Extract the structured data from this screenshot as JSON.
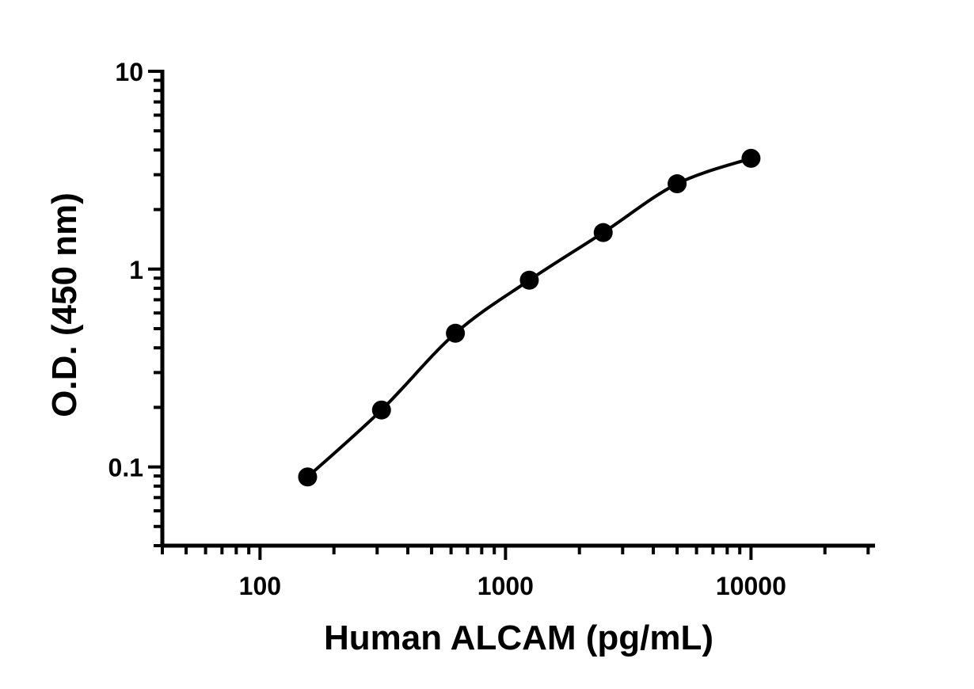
{
  "chart_data": {
    "type": "scatter",
    "title": "",
    "xlabel": "Human ALCAM (pg/mL)",
    "ylabel": "O.D. (450 nm)",
    "xscale": "log",
    "yscale": "log",
    "xlim": [
      40,
      32000
    ],
    "ylim": [
      0.04,
      10
    ],
    "xticks": [
      {
        "value": 100,
        "label": "100"
      },
      {
        "value": 1000,
        "label": "1000"
      },
      {
        "value": 10000,
        "label": "10000"
      }
    ],
    "yticks": [
      {
        "value": 0.1,
        "label": "0.1"
      },
      {
        "value": 1,
        "label": "1"
      },
      {
        "value": 10,
        "label": "10"
      }
    ],
    "grid": false,
    "fit_curve": true,
    "color": "#000000",
    "x": [
      156.25,
      312.5,
      625,
      1250,
      2500,
      5000,
      10000
    ],
    "y": [
      0.089,
      0.194,
      0.474,
      0.879,
      1.53,
      2.7,
      3.63
    ]
  }
}
